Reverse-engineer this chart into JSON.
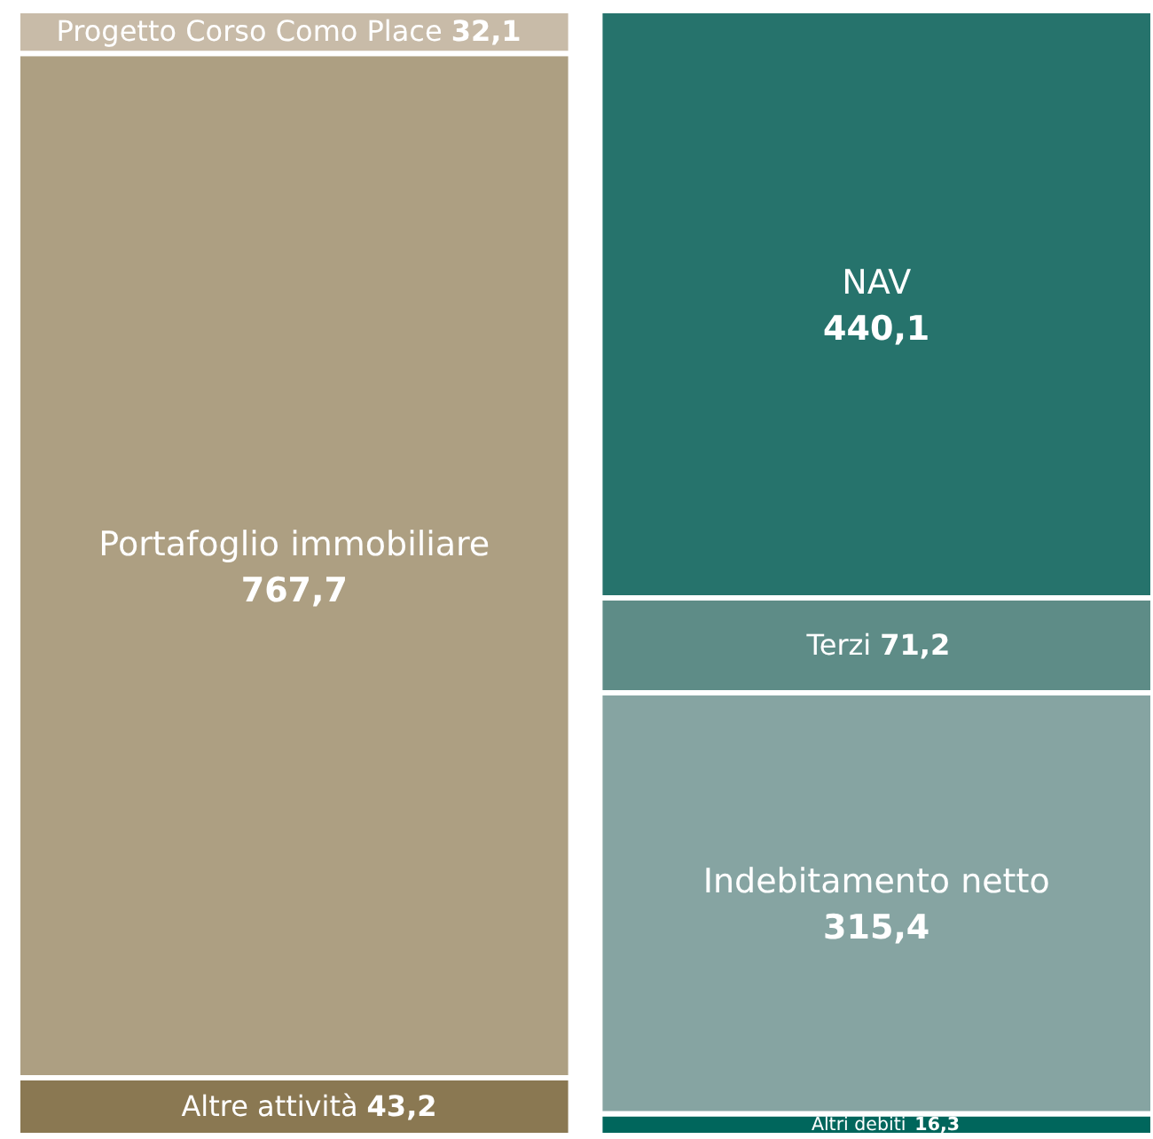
{
  "chart_data": {
    "type": "bar",
    "stacked": true,
    "categories": [
      null,
      null
    ],
    "series": [
      {
        "name": "Altre attività",
        "color": "#8a7852",
        "values": [
          43.2,
          null
        ],
        "value_labels": [
          "43,2",
          null
        ]
      },
      {
        "name": "Portafoglio immobiliare",
        "color": "#ad9f82",
        "values": [
          767.7,
          null
        ],
        "value_labels": [
          "767,7",
          null
        ]
      },
      {
        "name": "Progetto Corso Como Place",
        "color": "#c8bba8",
        "values": [
          32.1,
          null
        ],
        "value_labels": [
          "32,1",
          null
        ]
      },
      {
        "name": "Altri debiti",
        "color": "#00665c",
        "values": [
          null,
          16.3
        ],
        "value_labels": [
          null,
          "16,3"
        ]
      },
      {
        "name": "Indebitamento netto",
        "color": "#86a4a2",
        "values": [
          null,
          315.4
        ],
        "value_labels": [
          null,
          "315,4"
        ]
      },
      {
        "name": "Terzi",
        "color": "#5e8c87",
        "values": [
          null,
          71.2
        ],
        "value_labels": [
          null,
          "71,2"
        ]
      },
      {
        "name": "NAV",
        "color": "#26736c",
        "values": [
          null,
          440.1
        ],
        "value_labels": [
          null,
          "440,1"
        ]
      }
    ]
  }
}
